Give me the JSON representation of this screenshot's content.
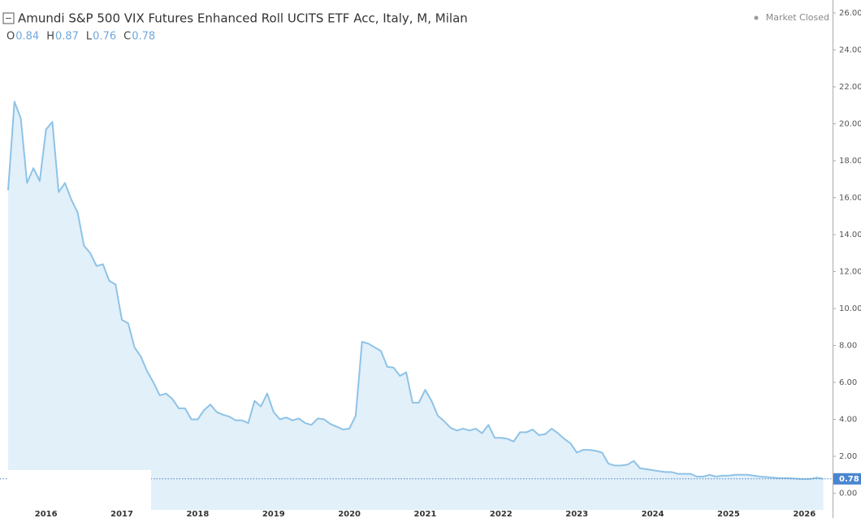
{
  "chart_data": {
    "type": "area",
    "title": "Amundi S&P 500 VIX Futures Enhanced Roll UCITS ETF Acc, Italy, M, Milan",
    "ohlc": [
      {
        "label": "O",
        "value": 0.84
      },
      {
        "label": "H",
        "value": 0.87
      },
      {
        "label": "L",
        "value": 0.76
      },
      {
        "label": "C",
        "value": 0.78
      }
    ],
    "status": "Market Closed",
    "last_price": 0.78,
    "line_color": "#8ec3e6",
    "fill_color": "#e2f0fa",
    "categories": [
      null,
      null,
      null,
      null,
      null,
      null,
      "2016",
      null,
      null,
      null,
      null,
      null,
      null,
      null,
      null,
      null,
      null,
      null,
      "2017",
      null,
      null,
      null,
      null,
      null,
      null,
      null,
      null,
      null,
      null,
      null,
      "2018",
      null,
      null,
      null,
      null,
      null,
      null,
      null,
      null,
      null,
      null,
      null,
      "2019",
      null,
      null,
      null,
      null,
      null,
      null,
      null,
      null,
      null,
      null,
      null,
      "2020",
      null,
      null,
      null,
      null,
      null,
      null,
      null,
      null,
      null,
      null,
      null,
      "2021",
      null,
      null,
      null,
      null,
      null,
      null,
      null,
      null,
      null,
      null,
      null,
      "2022",
      null,
      null,
      null,
      null,
      null,
      null,
      null,
      null,
      null,
      null,
      null,
      "2023",
      null,
      null,
      null,
      null,
      null,
      null,
      null,
      null,
      null,
      null,
      null,
      "2024",
      null,
      null,
      null,
      null,
      null,
      null,
      null,
      null,
      null,
      null,
      null,
      "2025",
      null,
      null,
      null,
      null,
      null,
      null,
      null,
      null,
      null,
      null,
      null,
      "2026",
      null,
      null,
      null
    ],
    "values": [
      16.4,
      21.2,
      20.3,
      16.8,
      17.6,
      16.9,
      19.7,
      20.1,
      16.3,
      16.8,
      15.9,
      15.2,
      13.4,
      13.0,
      12.3,
      12.4,
      11.5,
      11.3,
      9.4,
      9.2,
      7.9,
      7.4,
      6.6,
      6.0,
      5.3,
      5.4,
      5.1,
      4.6,
      4.6,
      4.0,
      4.0,
      4.5,
      4.8,
      4.4,
      4.25,
      4.15,
      3.95,
      3.95,
      3.8,
      5.0,
      4.7,
      5.4,
      4.4,
      4.0,
      4.1,
      3.95,
      4.05,
      3.8,
      3.7,
      4.05,
      4.0,
      3.75,
      3.6,
      3.45,
      3.5,
      4.2,
      8.2,
      8.1,
      7.9,
      7.7,
      6.85,
      6.8,
      6.35,
      6.55,
      4.9,
      4.9,
      5.6,
      5.0,
      4.2,
      3.9,
      3.55,
      3.4,
      3.5,
      3.4,
      3.5,
      3.25,
      3.7,
      3.0,
      3.0,
      2.95,
      2.8,
      3.3,
      3.3,
      3.45,
      3.15,
      3.2,
      3.5,
      3.25,
      2.95,
      2.7,
      2.2,
      2.35,
      2.35,
      2.3,
      2.2,
      1.6,
      1.5,
      1.5,
      1.55,
      1.75,
      1.35,
      1.3,
      1.25,
      1.2,
      1.15,
      1.15,
      1.05,
      1.05,
      1.05,
      0.9,
      0.9,
      1.0,
      0.9,
      0.95,
      0.95,
      1.0,
      1.0,
      1.0,
      0.95,
      0.9,
      0.88,
      0.85,
      0.82,
      0.82,
      0.8,
      0.78,
      0.76,
      0.78,
      0.84,
      0.78
    ],
    "ylim": [
      -0.9,
      26.35
    ],
    "yticks": [
      {
        "value": 0,
        "label": "0.00"
      },
      {
        "value": 2,
        "label": "2.00"
      },
      {
        "value": 4,
        "label": "4.00"
      },
      {
        "value": 6,
        "label": "6.00"
      },
      {
        "value": 8,
        "label": "8.00"
      },
      {
        "value": 10,
        "label": "10.00"
      },
      {
        "value": 12,
        "label": "12.00"
      },
      {
        "value": 14,
        "label": "14.00"
      },
      {
        "value": 16,
        "label": "16.00"
      },
      {
        "value": 18,
        "label": "18.00"
      },
      {
        "value": 20,
        "label": "20.00"
      },
      {
        "value": 22,
        "label": "22.00"
      },
      {
        "value": 24,
        "label": "24.00"
      },
      {
        "value": 26,
        "label": "26.00"
      }
    ]
  }
}
